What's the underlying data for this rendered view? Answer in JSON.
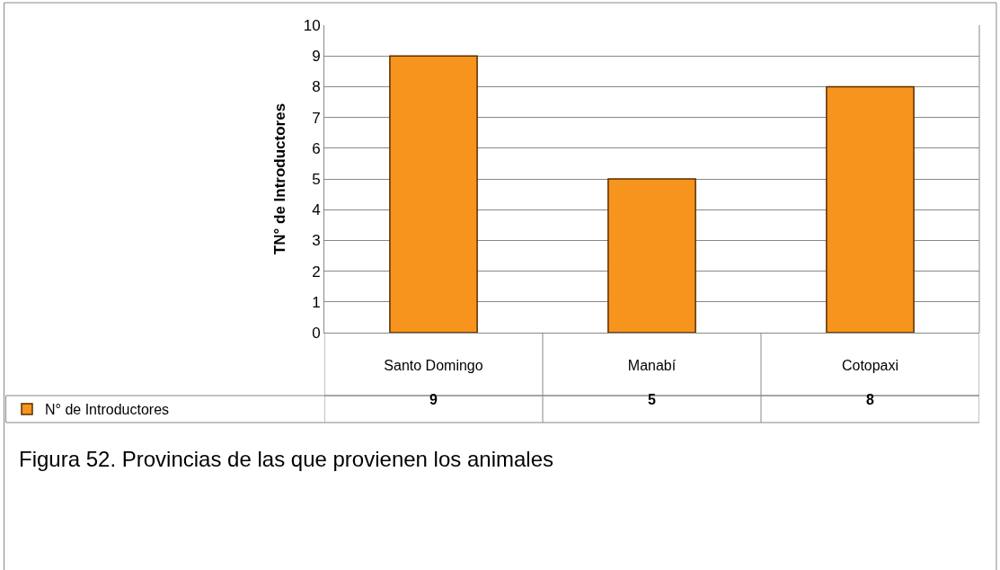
{
  "chart_data": {
    "type": "bar",
    "categories": [
      "Santo Domingo",
      "Manabí",
      "Cotopaxi"
    ],
    "series": [
      {
        "name": "N° de Introductores",
        "color": "#f7941d",
        "values": [
          9,
          5,
          8
        ]
      }
    ],
    "ylabel": "TN° de Introductores",
    "ylim": [
      0,
      10
    ],
    "yticks": [
      0,
      1,
      2,
      3,
      4,
      5,
      6,
      7,
      8,
      9,
      10
    ],
    "grid": "y",
    "legend": "bottom left",
    "data_labels": true,
    "annotations": [
      "Figura 52. Provincias de las que provienen los animales"
    ]
  }
}
